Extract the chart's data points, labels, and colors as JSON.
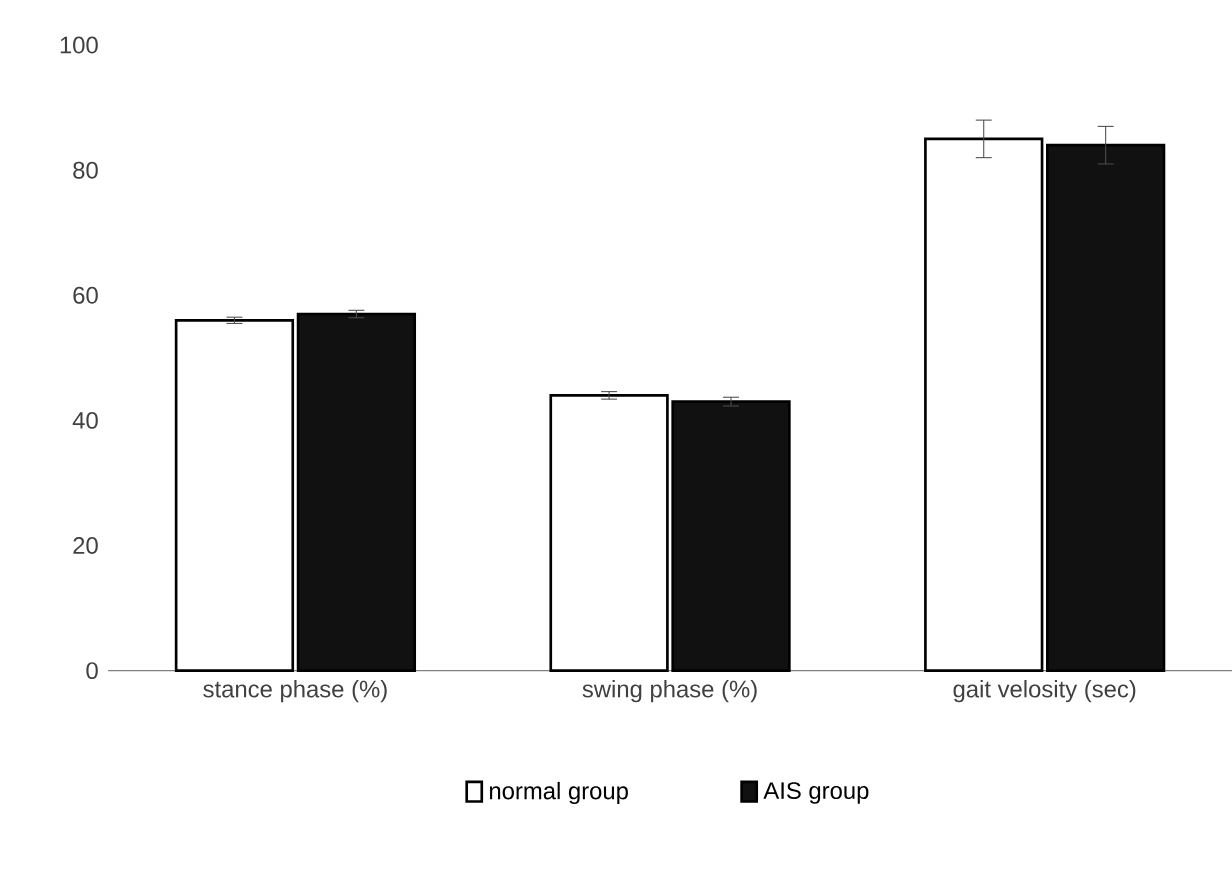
{
  "chart_data": {
    "type": "bar",
    "categories": [
      "stance phase (%)",
      "swing phase (%)",
      "gait velosity (sec)"
    ],
    "series": [
      {
        "name": "normal group",
        "color": "#ffffff",
        "values": [
          56,
          44,
          85
        ],
        "errors": [
          0.5,
          0.6,
          3
        ]
      },
      {
        "name": "AIS group",
        "color": "#111111",
        "values": [
          57,
          43,
          84
        ],
        "errors": [
          0.6,
          0.7,
          3
        ]
      }
    ],
    "ylim": [
      0,
      100
    ],
    "yticks": [
      0,
      20,
      40,
      60,
      80,
      100
    ],
    "legend": "bottom"
  }
}
